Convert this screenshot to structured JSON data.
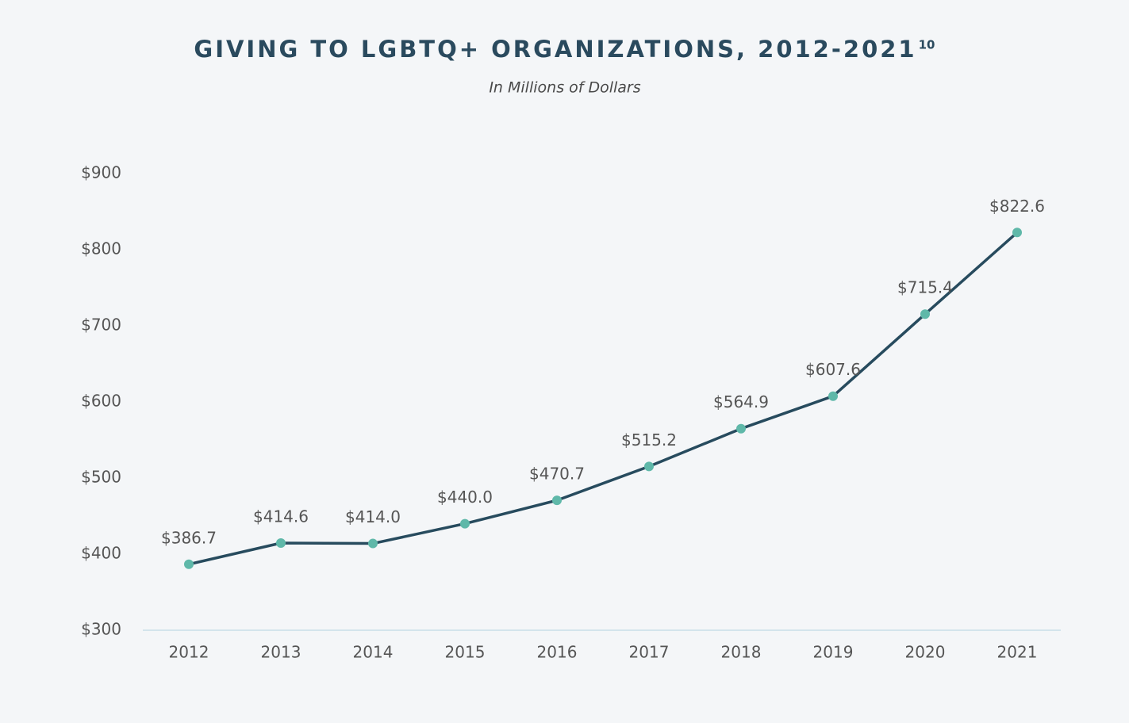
{
  "chart_data": {
    "type": "line",
    "title": "GIVING TO LGBTQ+ ORGANIZATIONS, 2012-2021",
    "title_superscript": "10",
    "subtitle": "In Millions of Dollars",
    "categories": [
      "2012",
      "2013",
      "2014",
      "2015",
      "2016",
      "2017",
      "2018",
      "2019",
      "2020",
      "2021"
    ],
    "series": [
      {
        "name": "Giving",
        "color": "#274b5e",
        "marker_color": "#5fb8a9",
        "values": [
          386.7,
          414.6,
          414.0,
          440.0,
          470.7,
          515.2,
          564.9,
          607.6,
          715.4,
          822.6
        ],
        "value_labels": [
          "$386.7",
          "$414.6",
          "$414.0",
          "$440.0",
          "$470.7",
          "$515.2",
          "$564.9",
          "$607.6",
          "$715.4",
          "$822.6"
        ]
      }
    ],
    "ylim": [
      300,
      900
    ],
    "yticks": [
      {
        "value": 300,
        "label": "$300"
      },
      {
        "value": 400,
        "label": "$400"
      },
      {
        "value": 500,
        "label": "$500"
      },
      {
        "value": 600,
        "label": "$600"
      },
      {
        "value": 700,
        "label": "$700"
      },
      {
        "value": 800,
        "label": "$800"
      },
      {
        "value": 900,
        "label": "$900"
      }
    ],
    "grid": false
  }
}
